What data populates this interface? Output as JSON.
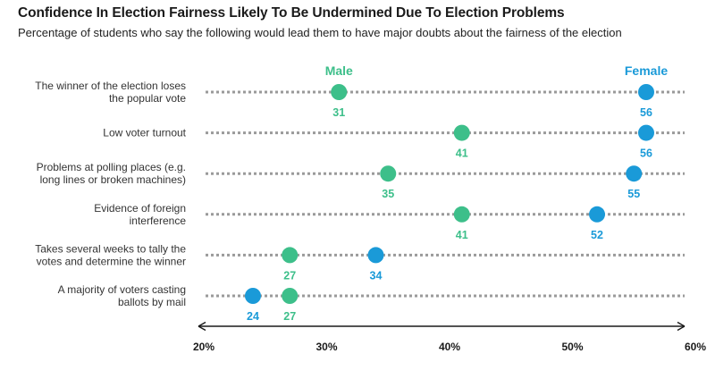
{
  "chart_data": {
    "type": "scatter",
    "title": "Confidence In Election Fairness Likely To Be Undermined Due To Election Problems",
    "subtitle": "Percentage of students who say the following would lead them to have major doubts about the fairness of the election",
    "xlim": [
      20,
      60
    ],
    "x_ticks": [
      "20%",
      "30%",
      "40%",
      "50%",
      "60%"
    ],
    "grid": false,
    "legend_placement": "top, above first row at each series' marker",
    "colors": {
      "Male": "#3dbf8a",
      "Female": "#1a9ad8"
    },
    "categories": [
      [
        "The winner of the election loses",
        "the popular vote"
      ],
      [
        "Low voter turnout"
      ],
      [
        "Problems at polling places (e.g.",
        "long lines or broken machines)"
      ],
      [
        "Evidence of foreign",
        "interference"
      ],
      [
        "Takes several weeks to tally the",
        "votes and determine the winner"
      ],
      [
        "A majority of voters casting",
        "ballots by mail"
      ]
    ],
    "series": [
      {
        "name": "Male",
        "values": [
          31,
          41,
          35,
          41,
          27,
          27
        ]
      },
      {
        "name": "Female",
        "values": [
          56,
          56,
          55,
          52,
          34,
          24
        ]
      }
    ]
  }
}
